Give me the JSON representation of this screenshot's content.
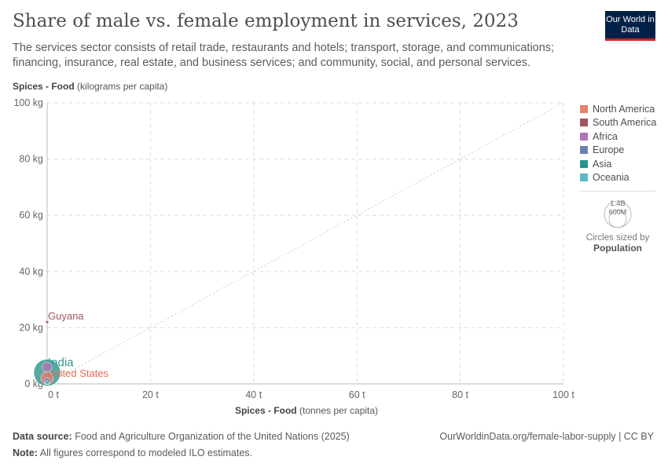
{
  "title": "Share of male vs. female employment in services, 2023",
  "subtitle": "The services sector consists of retail trade, restaurants and hotels; transport, storage, and communications; financing, insurance, real estate, and business services; and community, social, and personal services.",
  "logo": "Our World in Data",
  "footer": {
    "source_label": "Data source:",
    "source": "Food and Agriculture Organization of the United Nations (2025)",
    "note_label": "Note:",
    "note": "All figures correspond to modeled ILO estimates.",
    "url": "OurWorldinData.org/female-labor-supply | CC BY"
  },
  "size_legend": {
    "big": "1.4B",
    "small": "600M",
    "caption": "Circles sized by",
    "variable": "Population"
  },
  "chart_data": {
    "type": "scatter",
    "title": "Share of male vs. female employment in services, 2023",
    "xlabel_bold": "Spices - Food",
    "xlabel_unit": "(tonnes per capita)",
    "ylabel_bold": "Spices - Food",
    "ylabel_unit": "(kilograms per capita)",
    "xlim": [
      0,
      100
    ],
    "ylim": [
      0,
      100
    ],
    "xticks": [
      "0 t",
      "20 t",
      "40 t",
      "60 t",
      "80 t",
      "100 t"
    ],
    "yticks": [
      "0 kg",
      "20 kg",
      "40 kg",
      "60 kg",
      "80 kg",
      "100 kg"
    ],
    "grid": true,
    "diagonal_line": true,
    "legend_placement": "right",
    "legend": [
      {
        "name": "North America",
        "color": "#e6806f"
      },
      {
        "name": "South America",
        "color": "#a2545f"
      },
      {
        "name": "Africa",
        "color": "#b174b5"
      },
      {
        "name": "Europe",
        "color": "#6b81ad"
      },
      {
        "name": "Asia",
        "color": "#2a9388"
      },
      {
        "name": "Oceania",
        "color": "#5cb8c4"
      }
    ],
    "points": [
      {
        "label": "Guyana",
        "x": 0,
        "y": 22,
        "region": "South America",
        "pop": 0.0008
      },
      {
        "label": "India",
        "x": 0,
        "y": 4,
        "region": "Asia",
        "pop": 1.43
      },
      {
        "label": "United States",
        "x": 0,
        "y": 2,
        "region": "North America",
        "pop": 0.33
      },
      {
        "label": "",
        "x": 0,
        "y": 6,
        "region": "Africa",
        "pop": 0.2
      },
      {
        "label": "",
        "x": 0,
        "y": 1,
        "region": "Europe",
        "pop": 0.08
      },
      {
        "label": "",
        "x": 0,
        "y": 0.5,
        "region": "Oceania",
        "pop": 0.03
      }
    ]
  }
}
